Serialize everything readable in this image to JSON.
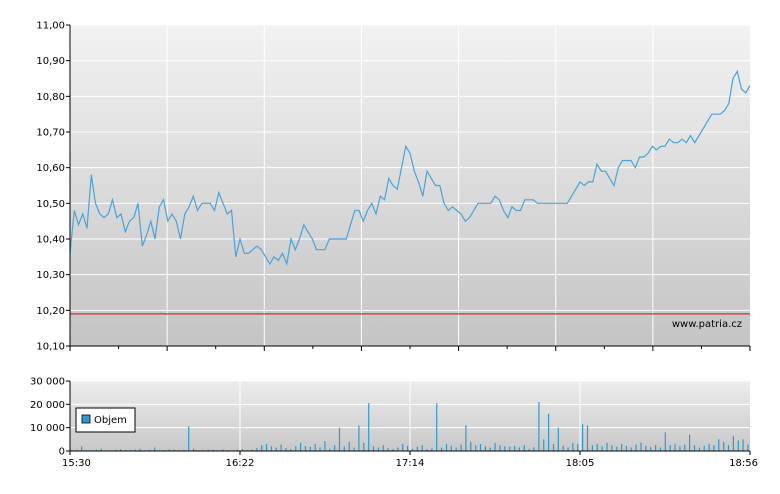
{
  "watermark": "www.patria.cz",
  "colors": {
    "line": "#4aa3d8",
    "reference": "#cc3333",
    "volume": "#3399cc",
    "plot_top": "#f2f2f2",
    "plot_bottom": "#c4c4c4",
    "grid": "#ffffff"
  },
  "chart_data": [
    {
      "type": "line",
      "x_ticks": [
        "15:30",
        "16:22",
        "17:14",
        "18:05",
        "18:56"
      ],
      "y_ticks": [
        "10,10",
        "10,20",
        "10,30",
        "10,40",
        "10,50",
        "10,60",
        "10,70",
        "10,80",
        "10,90",
        "11,00"
      ],
      "ylim": [
        10.1,
        11.0
      ],
      "grid": true,
      "reference_line": 10.19,
      "series": [
        {
          "values": [
            10.36,
            10.48,
            10.44,
            10.47,
            10.43,
            10.58,
            10.5,
            10.47,
            10.46,
            10.47,
            10.51,
            10.46,
            10.47,
            10.42,
            10.45,
            10.46,
            10.5,
            10.38,
            10.41,
            10.45,
            10.4,
            10.49,
            10.51,
            10.45,
            10.47,
            10.45,
            10.4,
            10.47,
            10.49,
            10.52,
            10.48,
            10.5,
            10.5,
            10.5,
            10.48,
            10.53,
            10.5,
            10.47,
            10.48,
            10.35,
            10.4,
            10.36,
            10.36,
            10.37,
            10.38,
            10.37,
            10.35,
            10.33,
            10.35,
            10.34,
            10.36,
            10.33,
            10.4,
            10.37,
            10.4,
            10.44,
            10.42,
            10.4,
            10.37,
            10.37,
            10.37,
            10.4,
            10.4,
            10.4,
            10.4,
            10.4,
            10.44,
            10.48,
            10.48,
            10.45,
            10.48,
            10.5,
            10.47,
            10.52,
            10.51,
            10.57,
            10.55,
            10.54,
            10.6,
            10.66,
            10.64,
            10.59,
            10.56,
            10.52,
            10.59,
            10.57,
            10.55,
            10.55,
            10.5,
            10.48,
            10.49,
            10.48,
            10.47,
            10.45,
            10.46,
            10.48,
            10.5,
            10.5,
            10.5,
            10.5,
            10.52,
            10.51,
            10.48,
            10.46,
            10.49,
            10.48,
            10.48,
            10.51,
            10.51,
            10.51,
            10.5,
            10.5,
            10.5,
            10.5,
            10.5,
            10.5,
            10.5,
            10.5,
            10.52,
            10.54,
            10.56,
            10.55,
            10.56,
            10.56,
            10.61,
            10.59,
            10.59,
            10.57,
            10.55,
            10.6,
            10.62,
            10.62,
            10.62,
            10.6,
            10.63,
            10.63,
            10.64,
            10.66,
            10.65,
            10.66,
            10.66,
            10.68,
            10.67,
            10.67,
            10.68,
            10.67,
            10.69,
            10.67,
            10.69,
            10.71,
            10.73,
            10.75,
            10.75,
            10.75,
            10.76,
            10.78,
            10.85,
            10.87,
            10.82,
            10.81,
            10.83
          ]
        }
      ]
    },
    {
      "type": "bar",
      "ylim": [
        0,
        30000
      ],
      "y_ticks": [
        "0",
        "10 000",
        "20 000",
        "30 000"
      ],
      "grid": true,
      "legend": "bottom-left",
      "series": [
        {
          "name": "Objem",
          "values": [
            300,
            500,
            2000,
            400,
            300,
            600,
            1000,
            300,
            200,
            500,
            800,
            400,
            300,
            600,
            1000,
            300,
            500,
            1500,
            300,
            400,
            800,
            600,
            300,
            500,
            10500,
            1000,
            300,
            400,
            600,
            500,
            300,
            700,
            400,
            300,
            500,
            800,
            300,
            600,
            1200,
            2500,
            3000,
            2000,
            1500,
            2800,
            1200,
            900,
            2000,
            3500,
            2200,
            1800,
            3000,
            1500,
            4200,
            1000,
            2500,
            10000,
            2000,
            4000,
            1500,
            11000,
            3500,
            20500,
            2000,
            1500,
            2500,
            1200,
            800,
            1500,
            3000,
            2200,
            1000,
            1800,
            2500,
            700,
            1200,
            20500,
            1500,
            3000,
            2200,
            1500,
            2800,
            11000,
            4000,
            2500,
            3000,
            2000,
            1500,
            3500,
            2500,
            2000,
            1800,
            2200,
            1500,
            2500,
            800,
            1600,
            21000,
            5000,
            16000,
            3000,
            10000,
            2200,
            1500,
            3500,
            3000,
            11500,
            11000,
            2500,
            3000,
            2000,
            3500,
            2500,
            1800,
            3000,
            2200,
            1500,
            2800,
            3500,
            2200,
            1800,
            2500,
            1500,
            8000,
            2500,
            3000,
            2200,
            2800,
            7000,
            2500,
            1500,
            2200,
            3000,
            2500,
            5000,
            4000,
            2500,
            6500,
            4500,
            5000,
            2800
          ]
        }
      ]
    }
  ]
}
